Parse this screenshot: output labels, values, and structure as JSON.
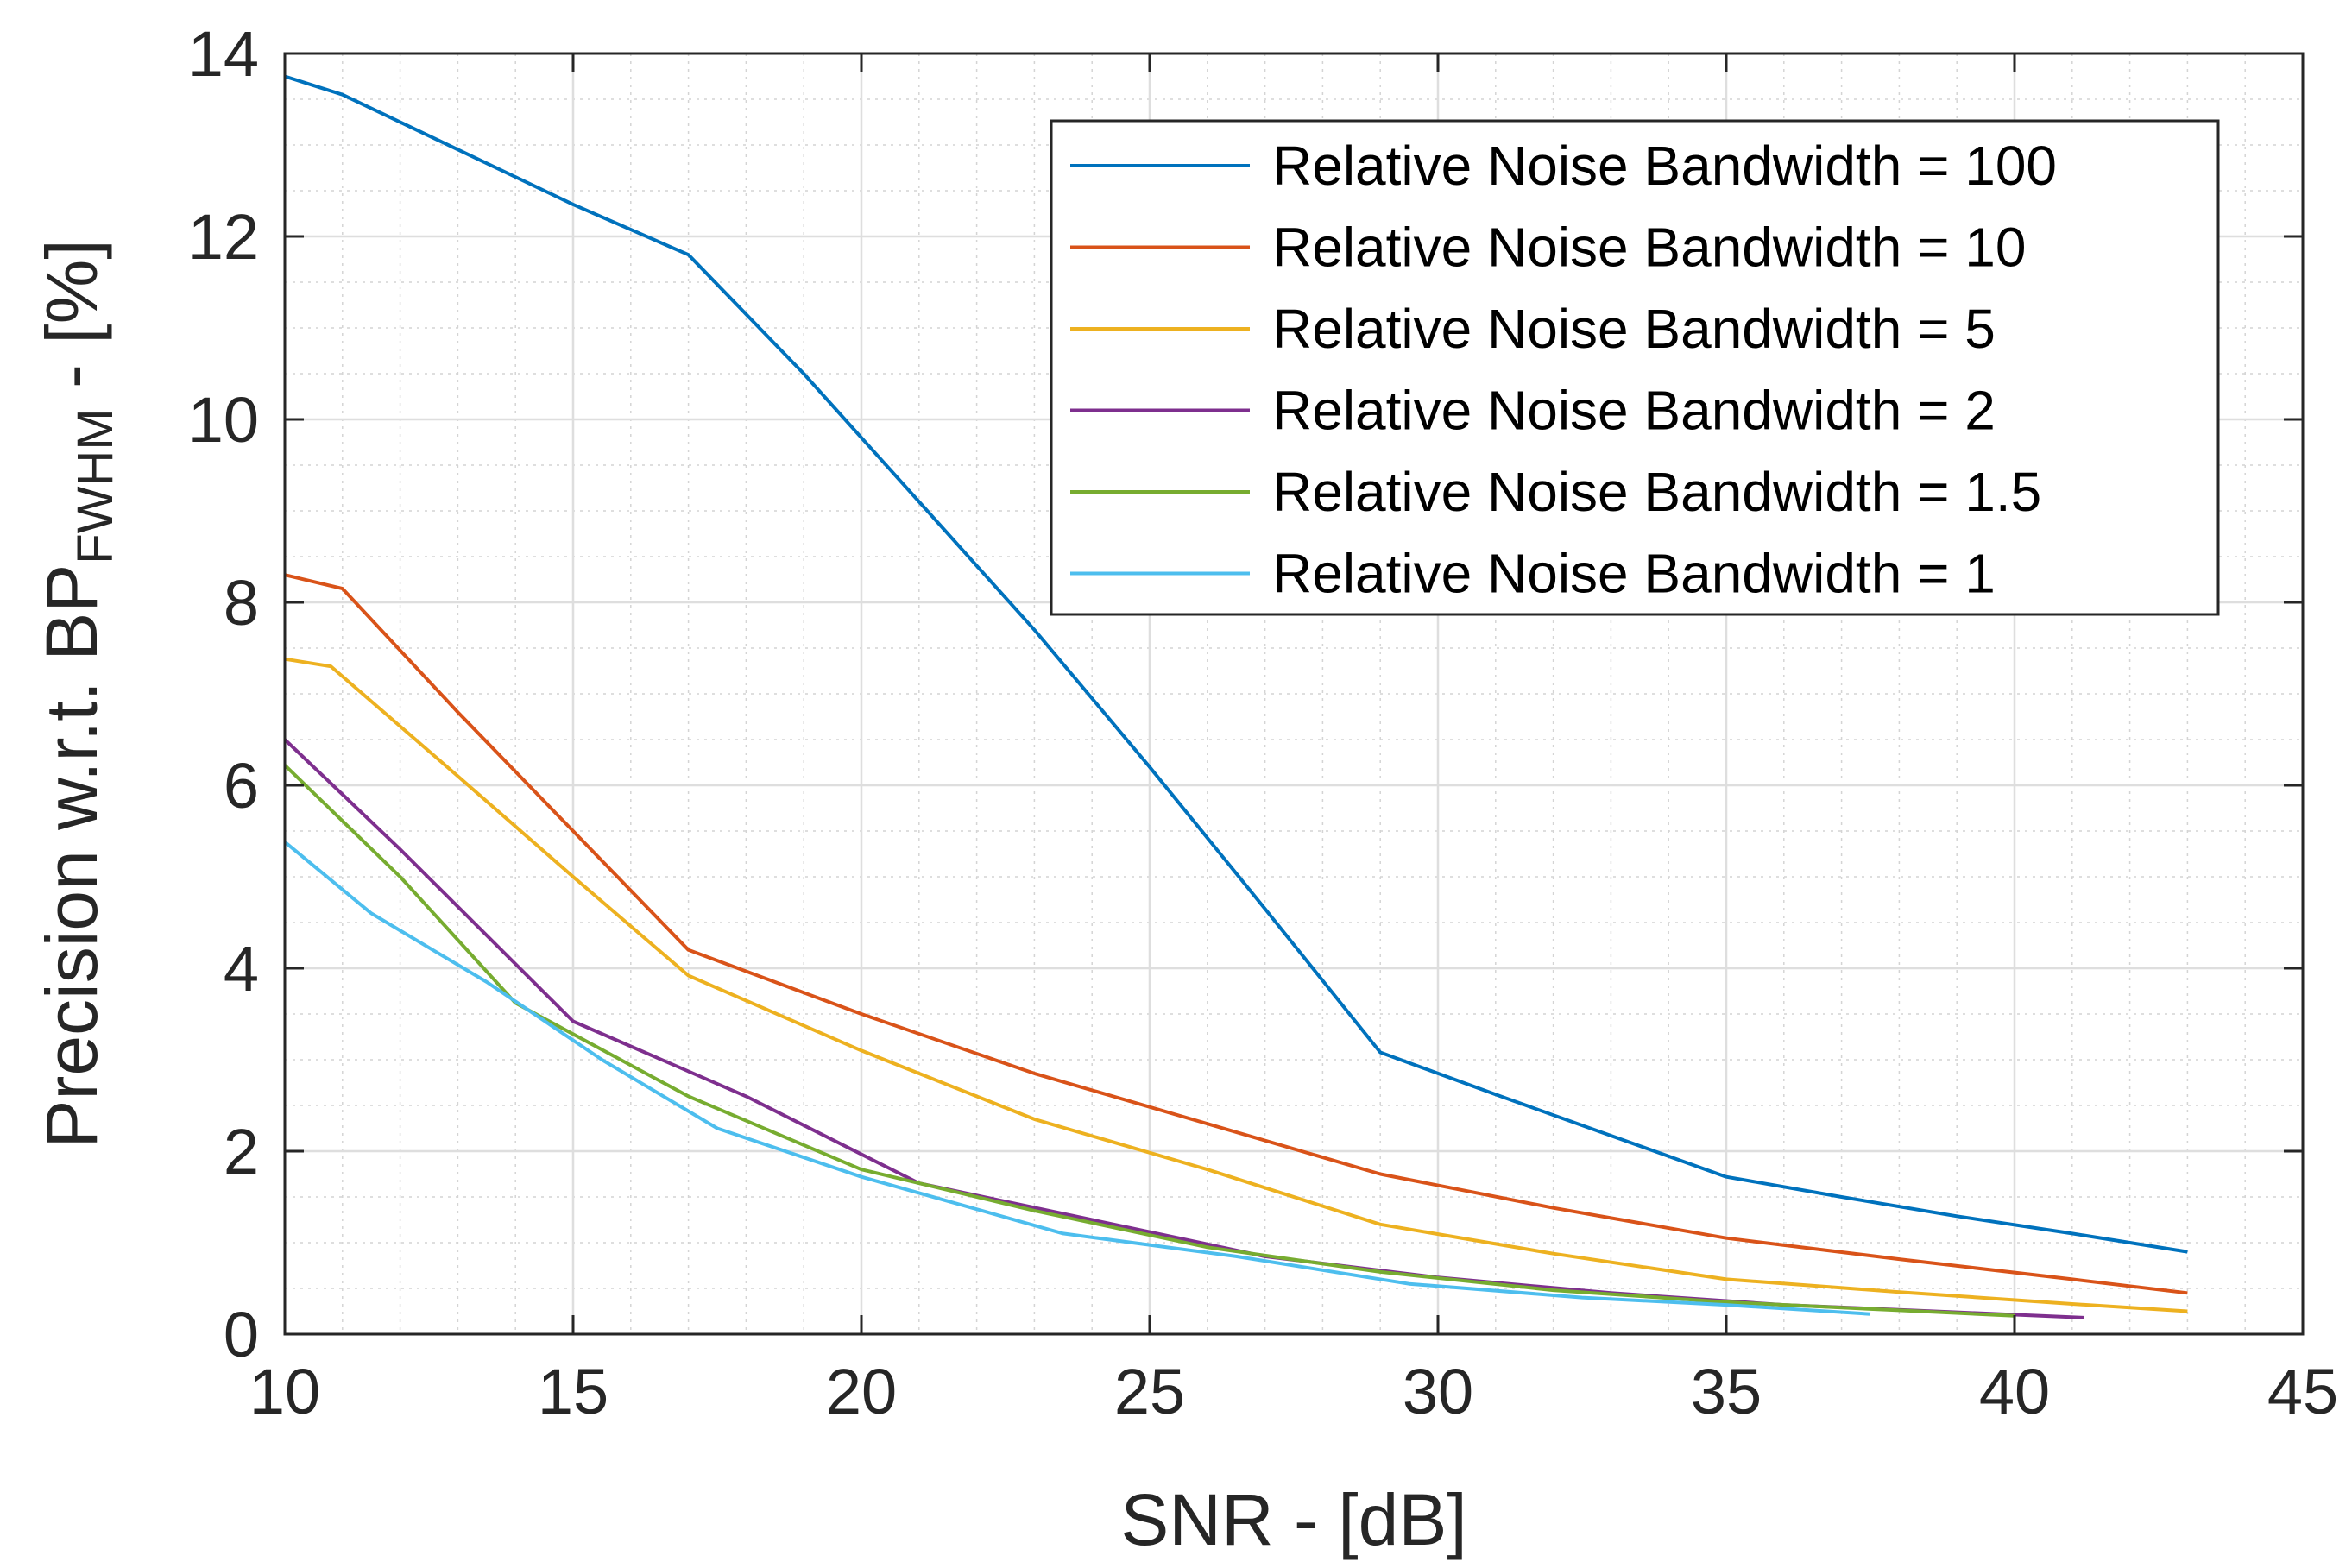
{
  "chart_data": {
    "type": "line",
    "title": "",
    "xlabel": "SNR - [dB]",
    "ylabel": {
      "main": "Precision w.r.t. BP",
      "subscript": "FWHM",
      "suffix": " - [%]"
    },
    "xlim": [
      10,
      45
    ],
    "ylim": [
      0,
      14
    ],
    "xticks": [
      10,
      15,
      20,
      25,
      30,
      35,
      40,
      45
    ],
    "yticks": [
      0,
      2,
      4,
      6,
      8,
      10,
      12,
      14
    ],
    "grid": true,
    "minor_grid": true,
    "legend_position": "top-right",
    "series": [
      {
        "name": "Relative Noise Bandwidth = 100",
        "color": "#0072BD",
        "x": [
          10,
          11,
          13,
          15,
          17,
          19,
          21,
          23,
          25,
          27,
          29,
          31,
          33,
          35,
          37,
          39,
          41,
          43
        ],
        "y": [
          13.75,
          13.55,
          12.95,
          12.35,
          11.8,
          10.5,
          9.1,
          7.7,
          6.2,
          4.65,
          3.08,
          2.62,
          2.17,
          1.72,
          1.5,
          1.29,
          1.1,
          0.9
        ]
      },
      {
        "name": "Relative Noise Bandwidth = 10",
        "color": "#D95319",
        "x": [
          10,
          11,
          13,
          15,
          17,
          20,
          23,
          26,
          29,
          32,
          35,
          38,
          41,
          43
        ],
        "y": [
          8.3,
          8.15,
          6.8,
          5.5,
          4.2,
          3.5,
          2.85,
          2.3,
          1.75,
          1.38,
          1.05,
          0.82,
          0.6,
          0.45
        ]
      },
      {
        "name": "Relative Noise Bandwidth = 5",
        "color": "#EDB120",
        "x": [
          10,
          10.8,
          13,
          15,
          17,
          20,
          23,
          26,
          29,
          32,
          35,
          38,
          41,
          43
        ],
        "y": [
          7.38,
          7.3,
          6.1,
          5.0,
          3.92,
          3.1,
          2.35,
          1.8,
          1.2,
          0.88,
          0.6,
          0.46,
          0.33,
          0.25
        ]
      },
      {
        "name": "Relative Noise Bandwidth = 2",
        "color": "#7E2F8E",
        "x": [
          10,
          12,
          15,
          18,
          21,
          24,
          27,
          30,
          33,
          36,
          39,
          41.2
        ],
        "y": [
          6.5,
          5.3,
          3.42,
          2.6,
          1.65,
          1.25,
          0.85,
          0.62,
          0.45,
          0.32,
          0.24,
          0.18
        ]
      },
      {
        "name": "Relative Noise Bandwidth = 1.5",
        "color": "#77AC30",
        "x": [
          10,
          12,
          14,
          17,
          20,
          23,
          26,
          29,
          32,
          35,
          38,
          40
        ],
        "y": [
          6.22,
          5.0,
          3.62,
          2.6,
          1.8,
          1.35,
          0.95,
          0.68,
          0.48,
          0.35,
          0.26,
          0.2
        ]
      },
      {
        "name": "Relative Noise Bandwidth = 1",
        "color": "#4DBEEE",
        "x": [
          10,
          11.5,
          13.5,
          15.5,
          17.5,
          20,
          23.5,
          26.5,
          29.5,
          32.5,
          35,
          37.5
        ],
        "y": [
          5.38,
          4.6,
          3.85,
          3.0,
          2.25,
          1.72,
          1.1,
          0.85,
          0.55,
          0.4,
          0.32,
          0.22
        ]
      }
    ]
  }
}
